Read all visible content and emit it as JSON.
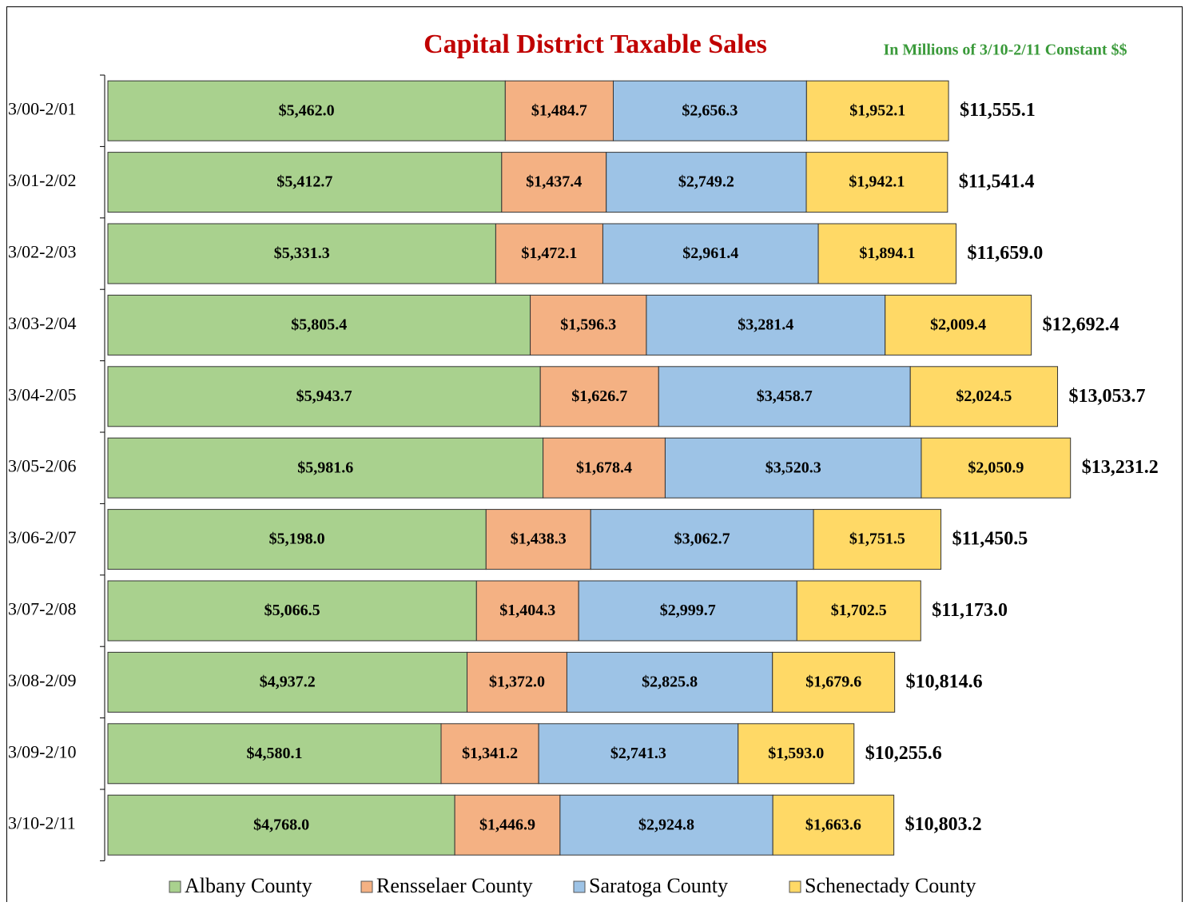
{
  "chart_data": {
    "type": "stacked-barh",
    "title": "Capital District Taxable Sales",
    "subtitle": "In Millions of 3/10-2/11 Constant $$",
    "categories": [
      "3/00-2/01",
      "3/01-2/02",
      "3/02-2/03",
      "3/03-2/04",
      "3/04-2/05",
      "3/05-2/06",
      "3/06-2/07",
      "3/07-2/08",
      "3/08-2/09",
      "3/09-2/10",
      "3/10-2/11"
    ],
    "series": [
      {
        "name": "Albany County",
        "color": "#a9d18e",
        "values": [
          5462.0,
          5412.7,
          5331.3,
          5805.4,
          5943.7,
          5981.6,
          5198.0,
          5066.5,
          4937.2,
          4580.1,
          4768.0
        ],
        "value_labels": [
          "$5,462.0",
          "$5,412.7",
          "$5,331.3",
          "$5,805.4",
          "$5,943.7",
          "$5,981.6",
          "$5,198.0",
          "$5,066.5",
          "$4,937.2",
          "$4,580.1",
          "$4,768.0"
        ]
      },
      {
        "name": "Rensselaer County",
        "color": "#f4b183",
        "values": [
          1484.7,
          1437.4,
          1472.1,
          1596.3,
          1626.7,
          1678.4,
          1438.3,
          1404.3,
          1372.0,
          1341.2,
          1446.9
        ],
        "value_labels": [
          "$1,484.7",
          "$1,437.4",
          "$1,472.1",
          "$1,596.3",
          "$1,626.7",
          "$1,678.4",
          "$1,438.3",
          "$1,404.3",
          "$1,372.0",
          "$1,341.2",
          "$1,446.9"
        ]
      },
      {
        "name": "Saratoga County",
        "color": "#9dc3e6",
        "values": [
          2656.3,
          2749.2,
          2961.4,
          3281.4,
          3458.7,
          3520.3,
          3062.7,
          2999.7,
          2825.8,
          2741.3,
          2924.8
        ],
        "value_labels": [
          "$2,656.3",
          "$2,749.2",
          "$2,961.4",
          "$3,281.4",
          "$3,458.7",
          "$3,520.3",
          "$3,062.7",
          "$2,999.7",
          "$2,825.8",
          "$2,741.3",
          "$2,924.8"
        ]
      },
      {
        "name": "Schenectady County",
        "color": "#ffd966",
        "values": [
          1952.1,
          1942.1,
          1894.1,
          2009.4,
          2024.5,
          2050.9,
          1751.5,
          1702.5,
          1679.6,
          1593.0,
          1663.6
        ],
        "value_labels": [
          "$1,952.1",
          "$1,942.1",
          "$1,894.1",
          "$2,009.4",
          "$2,024.5",
          "$2,050.9",
          "$1,751.5",
          "$1,702.5",
          "$1,679.6",
          "$1,593.0",
          "$1,663.6"
        ]
      }
    ],
    "totals": [
      11555.1,
      11541.4,
      11659.0,
      12692.4,
      13053.7,
      13231.2,
      11450.5,
      11173.0,
      10814.6,
      10255.6,
      10803.2
    ],
    "total_labels": [
      "$11,555.1",
      "$11,541.4",
      "$11,659.0",
      "$12,692.4",
      "$13,053.7",
      "$13,231.2",
      "$11,450.5",
      "$11,173.0",
      "$10,814.6",
      "$10,255.6",
      "$10,803.2"
    ],
    "legend": "bottom"
  }
}
